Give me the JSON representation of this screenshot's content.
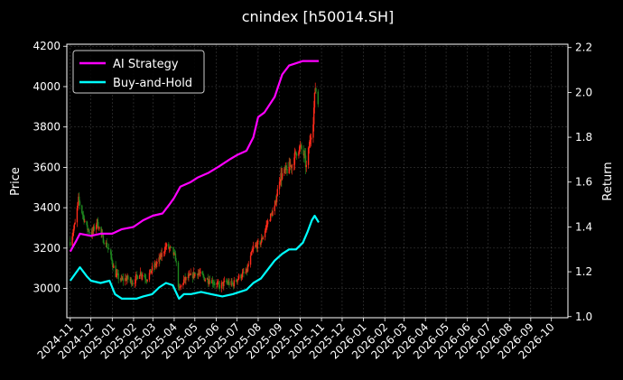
{
  "chart_data": {
    "type": "line",
    "title": "cnindex [h50014.SH]",
    "ylabel_left": "Price",
    "ylabel_right": "Return",
    "ylim_left": [
      2855,
      4210
    ],
    "ylim_right": [
      0.995,
      2.215
    ],
    "y_ticks_left": [
      3000,
      3200,
      3400,
      3600,
      3800,
      4000,
      4200
    ],
    "y_ticks_right": [
      1.0,
      1.2,
      1.4,
      1.6,
      1.8,
      2.0,
      2.2
    ],
    "x_ticks": [
      "2024-11",
      "2024-12",
      "2025-01",
      "2025-02",
      "2025-03",
      "2025-04",
      "2025-05",
      "2025-06",
      "2025-07",
      "2025-08",
      "2025-09",
      "2025-10",
      "2025-11",
      "2025-12",
      "2026-01",
      "2026-02",
      "2026-03",
      "2026-04",
      "2026-05",
      "2026-06",
      "2026-07",
      "2026-08",
      "2026-09",
      "2026-10"
    ],
    "grid": true,
    "legend_position": "top-left",
    "colors": {
      "up": "#ff2a1a",
      "down": "#1f8a1f",
      "strategy": "#ff00ff",
      "hold": "#00ffff"
    },
    "candle_price_path": [
      [
        "2024-11-01",
        3230
      ],
      [
        "2024-11-08",
        3320
      ],
      [
        "2024-11-13",
        3440
      ],
      [
        "2024-11-18",
        3380
      ],
      [
        "2024-11-25",
        3300
      ],
      [
        "2024-12-02",
        3270
      ],
      [
        "2024-12-10",
        3330
      ],
      [
        "2024-12-18",
        3250
      ],
      [
        "2024-12-26",
        3200
      ],
      [
        "2025-01-06",
        3070
      ],
      [
        "2025-01-14",
        3040
      ],
      [
        "2025-01-22",
        3050
      ],
      [
        "2025-02-01",
        3030
      ],
      [
        "2025-02-10",
        3080
      ],
      [
        "2025-02-20",
        3050
      ],
      [
        "2025-03-01",
        3100
      ],
      [
        "2025-03-10",
        3140
      ],
      [
        "2025-03-20",
        3210
      ],
      [
        "2025-03-28",
        3190
      ],
      [
        "2025-04-03",
        3150
      ],
      [
        "2025-04-08",
        2990
      ],
      [
        "2025-04-15",
        3040
      ],
      [
        "2025-04-25",
        3060
      ],
      [
        "2025-05-05",
        3080
      ],
      [
        "2025-05-15",
        3050
      ],
      [
        "2025-05-25",
        3040
      ],
      [
        "2025-06-05",
        3010
      ],
      [
        "2025-06-15",
        3030
      ],
      [
        "2025-06-25",
        3020
      ],
      [
        "2025-07-05",
        3060
      ],
      [
        "2025-07-15",
        3080
      ],
      [
        "2025-07-25",
        3200
      ],
      [
        "2025-08-05",
        3230
      ],
      [
        "2025-08-15",
        3330
      ],
      [
        "2025-08-25",
        3400
      ],
      [
        "2025-09-01",
        3550
      ],
      [
        "2025-09-10",
        3580
      ],
      [
        "2025-09-20",
        3620
      ],
      [
        "2025-09-28",
        3700
      ],
      [
        "2025-10-05",
        3680
      ],
      [
        "2025-10-10",
        3600
      ],
      [
        "2025-10-16",
        3750
      ],
      [
        "2025-10-20",
        3840
      ],
      [
        "2025-10-23",
        4000
      ],
      [
        "2025-10-27",
        3920
      ]
    ],
    "series": [
      {
        "name": "AI Strategy",
        "axis": "right",
        "color": "#ff00ff",
        "points": [
          [
            "2024-11-01",
            1.29
          ],
          [
            "2024-11-10",
            1.34
          ],
          [
            "2024-11-15",
            1.37
          ],
          [
            "2024-12-01",
            1.36
          ],
          [
            "2024-12-15",
            1.37
          ],
          [
            "2025-01-01",
            1.37
          ],
          [
            "2025-01-15",
            1.39
          ],
          [
            "2025-02-01",
            1.4
          ],
          [
            "2025-02-15",
            1.43
          ],
          [
            "2025-03-01",
            1.45
          ],
          [
            "2025-03-15",
            1.46
          ],
          [
            "2025-03-25",
            1.5
          ],
          [
            "2025-04-01",
            1.53
          ],
          [
            "2025-04-10",
            1.58
          ],
          [
            "2025-04-25",
            1.6
          ],
          [
            "2025-05-05",
            1.62
          ],
          [
            "2025-05-20",
            1.64
          ],
          [
            "2025-06-05",
            1.67
          ],
          [
            "2025-06-20",
            1.7
          ],
          [
            "2025-07-01",
            1.72
          ],
          [
            "2025-07-15",
            1.74
          ],
          [
            "2025-07-25",
            1.8
          ],
          [
            "2025-08-01",
            1.89
          ],
          [
            "2025-08-10",
            1.91
          ],
          [
            "2025-08-25",
            1.98
          ],
          [
            "2025-09-05",
            2.08
          ],
          [
            "2025-09-15",
            2.12
          ],
          [
            "2025-09-25",
            2.13
          ],
          [
            "2025-10-05",
            2.14
          ],
          [
            "2025-10-15",
            2.14
          ],
          [
            "2025-10-28",
            2.14
          ]
        ]
      },
      {
        "name": "Buy-and-Hold",
        "axis": "right",
        "color": "#00ffff",
        "points": [
          [
            "2024-11-01",
            1.16
          ],
          [
            "2024-11-08",
            1.19
          ],
          [
            "2024-11-15",
            1.22
          ],
          [
            "2024-11-25",
            1.18
          ],
          [
            "2024-12-01",
            1.16
          ],
          [
            "2024-12-15",
            1.15
          ],
          [
            "2024-12-28",
            1.16
          ],
          [
            "2025-01-05",
            1.1
          ],
          [
            "2025-01-15",
            1.08
          ],
          [
            "2025-01-25",
            1.08
          ],
          [
            "2025-02-05",
            1.08
          ],
          [
            "2025-02-15",
            1.09
          ],
          [
            "2025-02-28",
            1.1
          ],
          [
            "2025-03-10",
            1.13
          ],
          [
            "2025-03-20",
            1.15
          ],
          [
            "2025-03-30",
            1.14
          ],
          [
            "2025-04-08",
            1.08
          ],
          [
            "2025-04-15",
            1.1
          ],
          [
            "2025-04-25",
            1.1
          ],
          [
            "2025-05-10",
            1.11
          ],
          [
            "2025-05-25",
            1.1
          ],
          [
            "2025-06-10",
            1.09
          ],
          [
            "2025-06-25",
            1.1
          ],
          [
            "2025-07-05",
            1.11
          ],
          [
            "2025-07-15",
            1.12
          ],
          [
            "2025-07-25",
            1.15
          ],
          [
            "2025-08-05",
            1.17
          ],
          [
            "2025-08-15",
            1.21
          ],
          [
            "2025-08-25",
            1.25
          ],
          [
            "2025-09-05",
            1.28
          ],
          [
            "2025-09-15",
            1.3
          ],
          [
            "2025-09-25",
            1.3
          ],
          [
            "2025-10-05",
            1.33
          ],
          [
            "2025-10-12",
            1.38
          ],
          [
            "2025-10-18",
            1.43
          ],
          [
            "2025-10-22",
            1.45
          ],
          [
            "2025-10-28",
            1.42
          ]
        ]
      }
    ]
  }
}
